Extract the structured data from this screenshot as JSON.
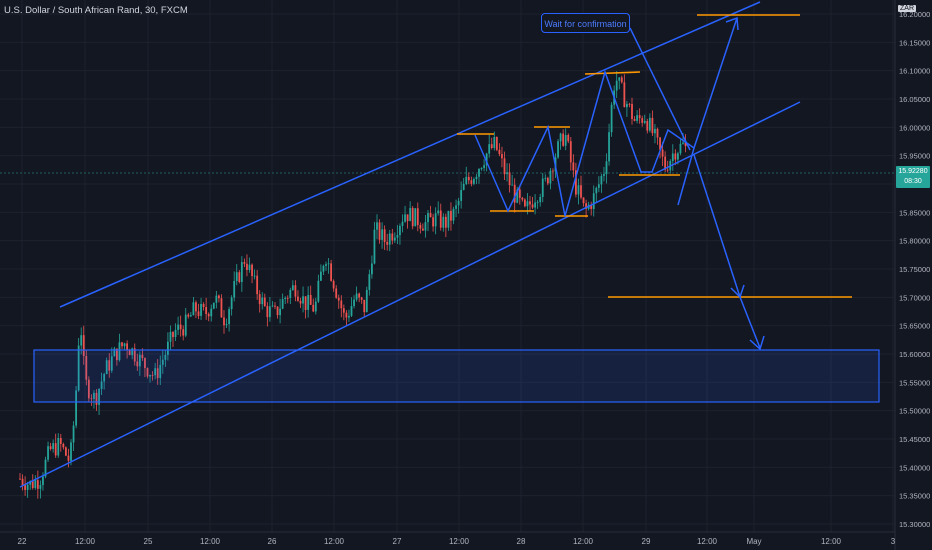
{
  "header": {
    "symbol_title": "U.S. Dollar / South African Rand, 30, FXCM"
  },
  "currency_tag": "ZAR",
  "last_price": {
    "value": "15.92280",
    "countdown": "08:30",
    "color": "#26a69a"
  },
  "annotation": {
    "text": "Wait for confirmation"
  },
  "colors": {
    "background": "#131722",
    "up": "#26a69a",
    "down": "#ef5350",
    "drawing": "#2962ff",
    "level": "#ff9800"
  },
  "y_axis": {
    "labels": [
      "16.20000",
      "16.15000",
      "16.10000",
      "16.05000",
      "16.00000",
      "15.95000",
      "15.90000",
      "15.85000",
      "15.80000",
      "15.75000",
      "15.70000",
      "15.65000",
      "15.60000",
      "15.55000",
      "15.50000",
      "15.45000",
      "15.40000",
      "15.35000",
      "15.30000"
    ]
  },
  "x_axis": {
    "labels": [
      "22",
      "12:00",
      "25",
      "12:00",
      "26",
      "12:00",
      "27",
      "12:00",
      "28",
      "12:00",
      "29",
      "12:00",
      "May",
      "12:00",
      "3"
    ]
  },
  "chart_data": {
    "type": "candlestick",
    "title": "U.S. Dollar / South African Rand, 30, FXCM",
    "ylim": [
      15.3,
      16.2
    ],
    "x_ticks": [
      "22",
      "12:00",
      "25",
      "12:00",
      "26",
      "12:00",
      "27",
      "12:00",
      "28",
      "12:00",
      "29",
      "12:00",
      "May",
      "12:00",
      "3"
    ],
    "close_path": [
      [
        0,
        15.38
      ],
      [
        10,
        15.37
      ],
      [
        20,
        15.38
      ],
      [
        30,
        15.43
      ],
      [
        40,
        15.44
      ],
      [
        50,
        15.41
      ],
      [
        55,
        15.5
      ],
      [
        60,
        15.67
      ],
      [
        65,
        15.55
      ],
      [
        75,
        15.52
      ],
      [
        85,
        15.57
      ],
      [
        95,
        15.6
      ],
      [
        105,
        15.62
      ],
      [
        115,
        15.6
      ],
      [
        125,
        15.58
      ],
      [
        135,
        15.56
      ],
      [
        145,
        15.6
      ],
      [
        155,
        15.64
      ],
      [
        165,
        15.65
      ],
      [
        175,
        15.68
      ],
      [
        185,
        15.67
      ],
      [
        195,
        15.7
      ],
      [
        205,
        15.66
      ],
      [
        215,
        15.72
      ],
      [
        225,
        15.77
      ],
      [
        235,
        15.72
      ],
      [
        245,
        15.68
      ],
      [
        255,
        15.67
      ],
      [
        265,
        15.7
      ],
      [
        275,
        15.72
      ],
      [
        285,
        15.69
      ],
      [
        295,
        15.68
      ],
      [
        305,
        15.78
      ],
      [
        315,
        15.72
      ],
      [
        325,
        15.66
      ],
      [
        335,
        15.7
      ],
      [
        345,
        15.68
      ],
      [
        355,
        15.82
      ],
      [
        365,
        15.8
      ],
      [
        375,
        15.82
      ],
      [
        385,
        15.85
      ],
      [
        395,
        15.84
      ],
      [
        405,
        15.83
      ],
      [
        415,
        15.84
      ],
      [
        425,
        15.83
      ],
      [
        435,
        15.85
      ],
      [
        445,
        15.9
      ],
      [
        455,
        15.92
      ],
      [
        465,
        15.95
      ],
      [
        475,
        15.97
      ],
      [
        485,
        15.92
      ],
      [
        495,
        15.88
      ],
      [
        505,
        15.85
      ],
      [
        515,
        15.88
      ],
      [
        525,
        15.9
      ],
      [
        535,
        15.95
      ],
      [
        545,
        15.99
      ],
      [
        555,
        15.9
      ],
      [
        565,
        15.85
      ],
      [
        575,
        15.88
      ],
      [
        585,
        15.93
      ],
      [
        595,
        16.09
      ],
      [
        605,
        16.05
      ],
      [
        615,
        16.01
      ],
      [
        625,
        16.02
      ],
      [
        635,
        15.98
      ],
      [
        645,
        15.93
      ],
      [
        655,
        15.96
      ],
      [
        665,
        15.97
      ],
      [
        670,
        15.9
      ],
      [
        675,
        15.87
      ],
      [
        683,
        15.92
      ]
    ],
    "levels": [
      16.18,
      16.1,
      15.99,
      16.0,
      15.86,
      15.85,
      15.91,
      15.91,
      15.7
    ],
    "zone": {
      "top": 15.605,
      "bottom": 15.515
    },
    "last_price": 15.9228
  }
}
